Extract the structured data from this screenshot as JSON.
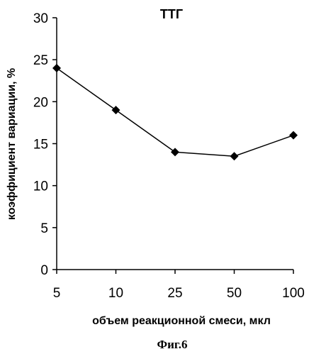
{
  "chart_data": {
    "type": "line",
    "title": "ТТГ",
    "xlabel": "объем реакционной смеси, мкл",
    "ylabel": "коэффициент вариации, %",
    "categories": [
      "5",
      "10",
      "25",
      "50",
      "100"
    ],
    "series": [
      {
        "values": [
          24,
          19,
          14,
          13.5,
          16
        ]
      }
    ],
    "ylim": [
      0,
      30
    ],
    "yticks": [
      0,
      5,
      10,
      15,
      20,
      25,
      30
    ],
    "grid": false,
    "legend": "none",
    "marker": "diamond",
    "line_color": "#000000"
  },
  "caption": "Фиг.6"
}
